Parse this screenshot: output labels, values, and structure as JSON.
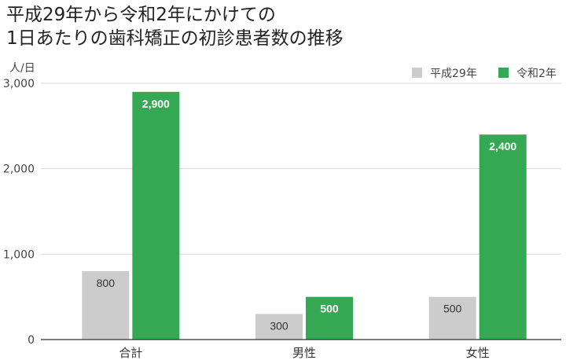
{
  "title_lines": [
    "平成29年から令和2年にかけての",
    "1日あたりの歯科矯正の初診患者数の推移"
  ],
  "chart_data": {
    "type": "bar",
    "title": "平成29年から令和2年にかけての 1日あたりの歯科矯正の初診患者数の推移",
    "unit_label": "人/日",
    "categories": [
      "合計",
      "男性",
      "女性"
    ],
    "series": [
      {
        "name": "平成29年",
        "values": [
          800,
          300,
          500
        ],
        "color": "#cccccc",
        "label_color": "#333333",
        "label_bold": false
      },
      {
        "name": "令和2年",
        "values": [
          2900,
          500,
          2400
        ],
        "color": "#34a853",
        "label_color": "#ffffff",
        "label_bold": true
      }
    ],
    "ylim": [
      0,
      3000
    ],
    "yticks": [
      0,
      1000,
      2000,
      3000
    ],
    "ytick_labels": [
      "0",
      "1,000",
      "2,000",
      "3,000"
    ],
    "data_labels": [
      [
        "800",
        "300",
        "500"
      ],
      [
        "2,900",
        "500",
        "2,400"
      ]
    ],
    "grid": true,
    "legend_position": "top-right"
  }
}
